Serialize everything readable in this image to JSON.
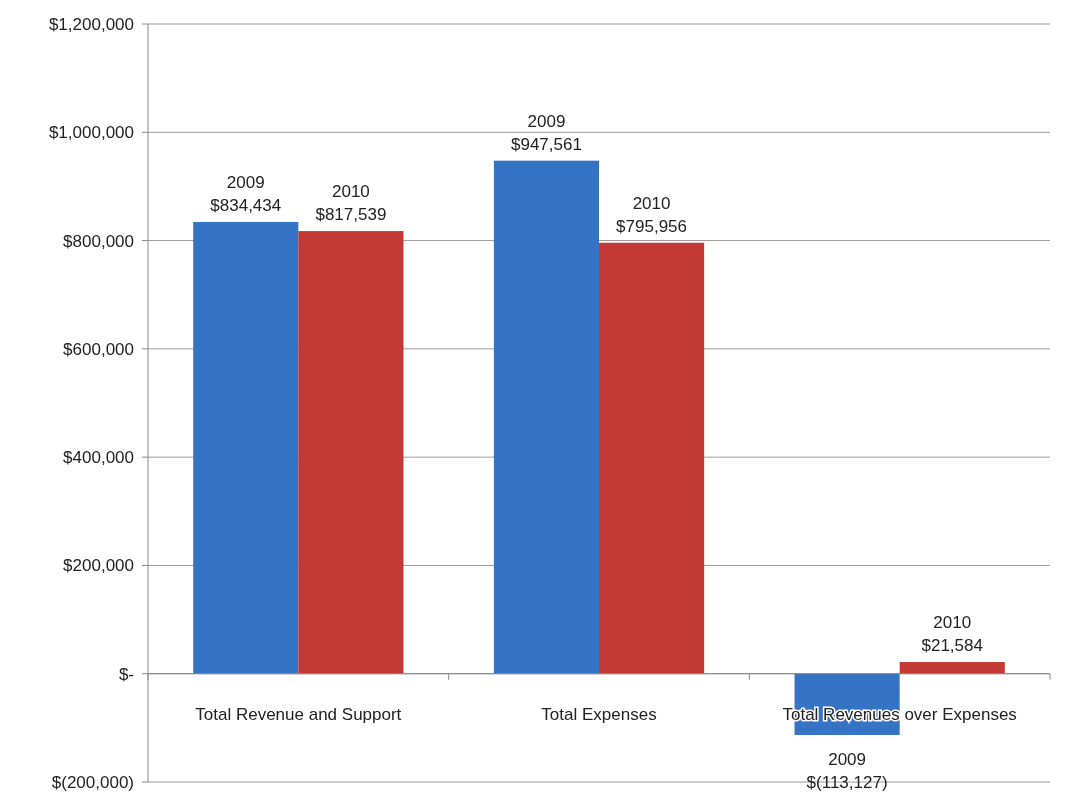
{
  "chart_data": {
    "type": "bar",
    "categories": [
      "Total Revenue and Support",
      "Total Expenses",
      "Total Revenues over Expenses"
    ],
    "series": [
      {
        "name": "2009",
        "color": "#3574c4",
        "values": [
          834434,
          947561,
          -113127
        ],
        "value_labels": [
          "$834,434",
          "$947,561",
          "$(113,127)"
        ]
      },
      {
        "name": "2010",
        "color": "#c23a33",
        "values": [
          817539,
          795956,
          21584
        ],
        "value_labels": [
          "$817,539",
          "$795,956",
          "$21,584"
        ]
      }
    ],
    "ylim": [
      -200000,
      1200000
    ],
    "yticks": [
      {
        "value": -200000,
        "label": "$(200,000)"
      },
      {
        "value": 0,
        "label": "$-"
      },
      {
        "value": 200000,
        "label": "$200,000"
      },
      {
        "value": 400000,
        "label": "$400,000"
      },
      {
        "value": 600000,
        "label": "$600,000"
      },
      {
        "value": 800000,
        "label": "$800,000"
      },
      {
        "value": 1000000,
        "label": "$1,000,000"
      },
      {
        "value": 1200000,
        "label": "$1,200,000"
      }
    ],
    "grid": "y"
  }
}
